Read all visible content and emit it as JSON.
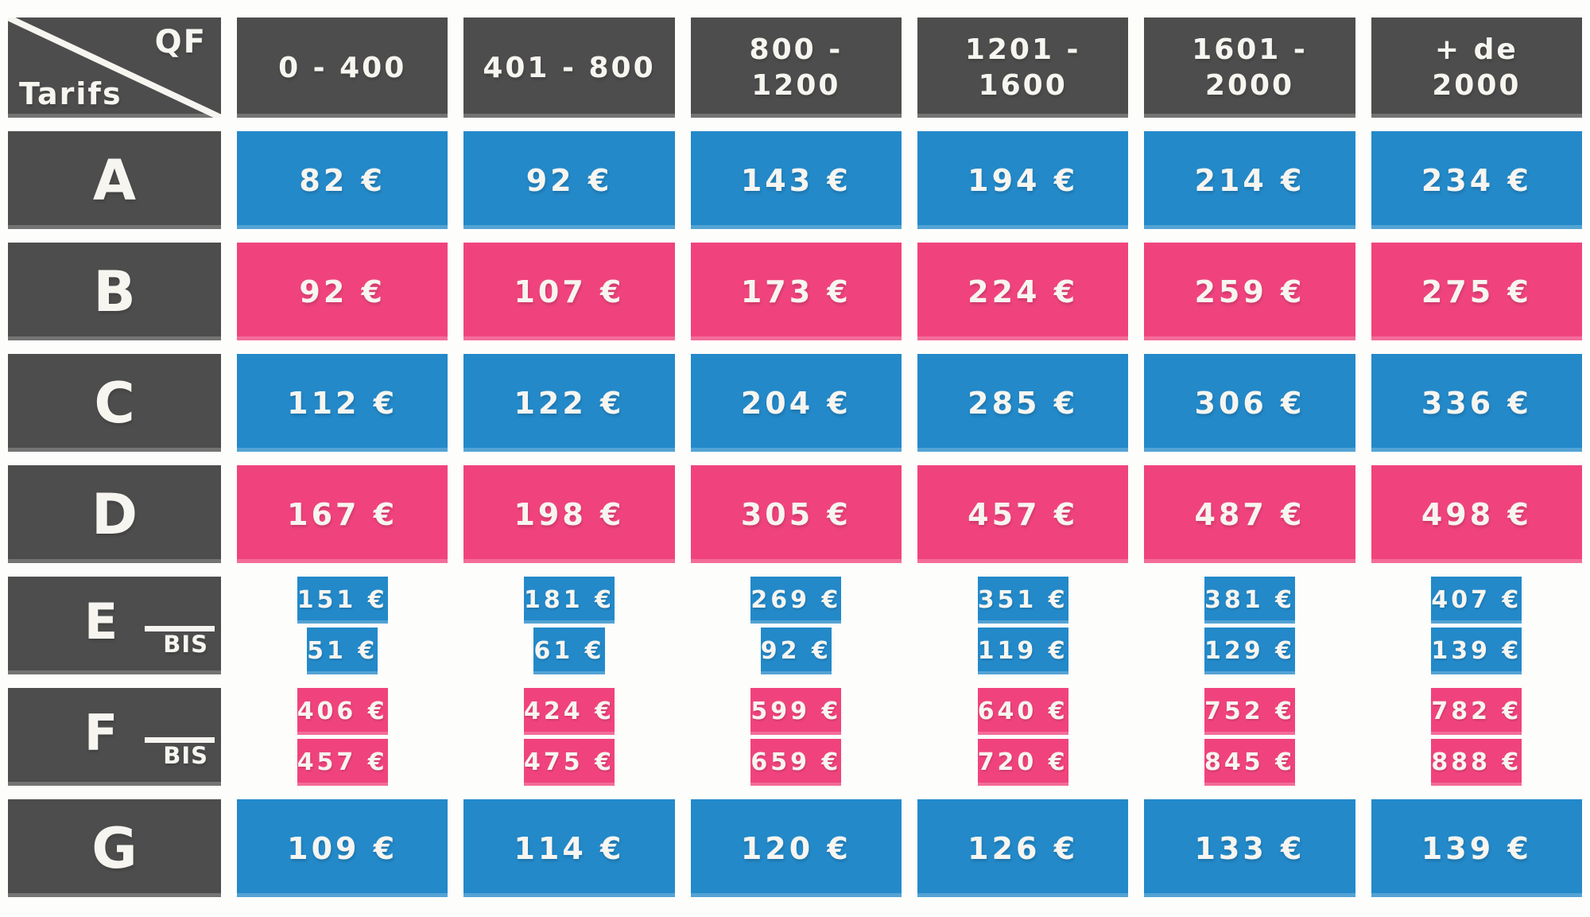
{
  "colors": {
    "background": "#fdfdfb",
    "header_bg": "#4d4d4d",
    "blue": "#2389c9",
    "pink": "#f0437e",
    "text": "#f7f5f0"
  },
  "table": {
    "corner": {
      "top_right": "QF",
      "bottom_left": "Tarifs"
    },
    "qf_columns": [
      {
        "label": "0 - 400"
      },
      {
        "label": "401 - 800"
      },
      {
        "label": "800 -\n1200"
      },
      {
        "label": "1201 -\n1600"
      },
      {
        "label": "1601 -\n2000"
      },
      {
        "label": "+ de\n2000"
      }
    ],
    "rows": [
      {
        "tarif": "A",
        "color": "blue",
        "values": [
          "82 €",
          "92 €",
          "143 €",
          "194 €",
          "214 €",
          "234 €"
        ]
      },
      {
        "tarif": "B",
        "color": "pink",
        "values": [
          "92 €",
          "107 €",
          "173 €",
          "224 €",
          "259 €",
          "275 €"
        ]
      },
      {
        "tarif": "C",
        "color": "blue",
        "values": [
          "112 €",
          "122 €",
          "204 €",
          "285 €",
          "306 €",
          "336 €"
        ]
      },
      {
        "tarif": "D",
        "color": "pink",
        "values": [
          "167 €",
          "198 €",
          "305 €",
          "457 €",
          "487 €",
          "498 €"
        ]
      },
      {
        "tarif": "E",
        "bis": "BIS",
        "color": "blue",
        "values": [
          "151 €",
          "181 €",
          "269 €",
          "351 €",
          "381 €",
          "407 €"
        ],
        "bis_values": [
          "51 €",
          "61 €",
          "92 €",
          "119 €",
          "129 €",
          "139 €"
        ]
      },
      {
        "tarif": "F",
        "bis": "BIS",
        "color": "pink",
        "values": [
          "406 €",
          "424 €",
          "599 €",
          "640 €",
          "752 €",
          "782 €"
        ],
        "bis_values": [
          "457 €",
          "475 €",
          "659 €",
          "720 €",
          "845 €",
          "888 €"
        ]
      },
      {
        "tarif": "G",
        "color": "blue",
        "values": [
          "109 €",
          "114 €",
          "120 €",
          "126 €",
          "133 €",
          "139 €"
        ]
      }
    ]
  },
  "chart_data": {
    "type": "table",
    "title": "Tarifs / QF",
    "unit": "EUR",
    "columns": [
      "0 - 400",
      "401 - 800",
      "800 - 1200",
      "1201 - 1600",
      "1601 - 2000",
      "+ de 2000"
    ],
    "rows": [
      {
        "tarif": "A",
        "values": [
          82,
          92,
          143,
          194,
          214,
          234
        ]
      },
      {
        "tarif": "B",
        "values": [
          92,
          107,
          173,
          224,
          259,
          275
        ]
      },
      {
        "tarif": "C",
        "values": [
          112,
          122,
          204,
          285,
          306,
          336
        ]
      },
      {
        "tarif": "D",
        "values": [
          167,
          198,
          305,
          457,
          487,
          498
        ]
      },
      {
        "tarif": "E",
        "values": [
          151,
          181,
          269,
          351,
          381,
          407
        ]
      },
      {
        "tarif": "E BIS",
        "values": [
          51,
          61,
          92,
          119,
          129,
          139
        ]
      },
      {
        "tarif": "F",
        "values": [
          406,
          424,
          599,
          640,
          752,
          782
        ]
      },
      {
        "tarif": "F BIS",
        "values": [
          457,
          475,
          659,
          720,
          845,
          888
        ]
      },
      {
        "tarif": "G",
        "values": [
          109,
          114,
          120,
          126,
          133,
          139
        ]
      }
    ]
  }
}
